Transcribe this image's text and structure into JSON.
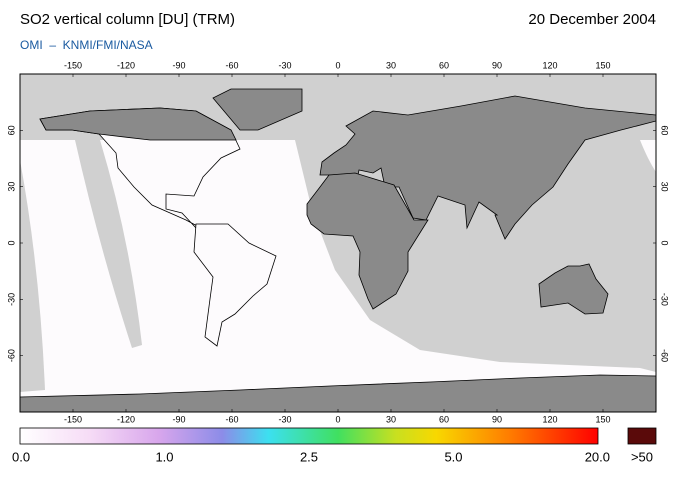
{
  "header": {
    "title": "SO2 vertical column [DU] (TRM)",
    "date": "20 December 2004",
    "credit": "OMI  –  KNMI/FMI/NASA"
  },
  "map": {
    "longitude_ticks": [
      -150,
      -120,
      -90,
      -60,
      -30,
      0,
      30,
      60,
      90,
      120,
      150
    ],
    "latitude_ticks": [
      60,
      30,
      0,
      -30,
      -60
    ]
  },
  "colorbar": {
    "labels": [
      {
        "value": 0,
        "label": "0.0"
      },
      {
        "value": 1,
        "label": "1.0"
      },
      {
        "value": 2.5,
        "label": "2.5"
      },
      {
        "value": 5,
        "label": "5.0"
      },
      {
        "value": 20,
        "label": "20.0"
      }
    ],
    "overflow_label": ">50"
  }
}
